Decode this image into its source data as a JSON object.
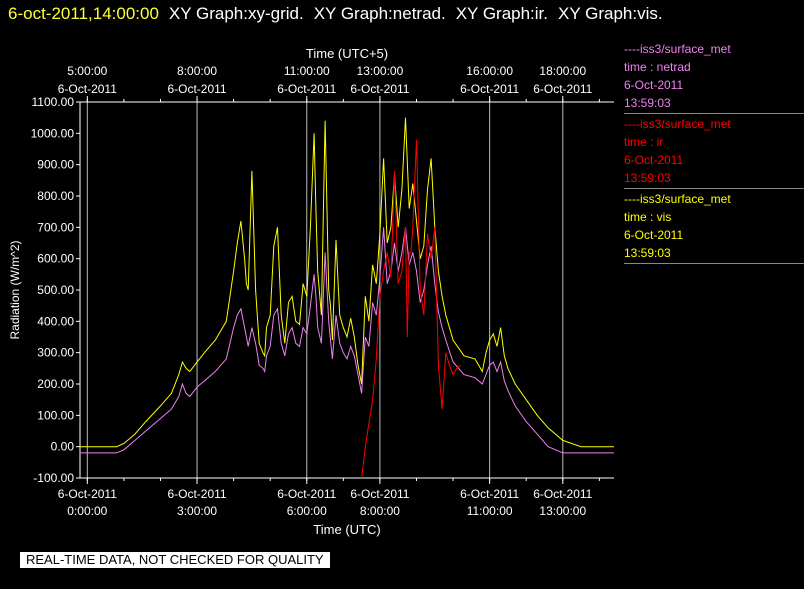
{
  "header": {
    "datetime": "6-oct-2011,14:00:00",
    "graphs": [
      "XY Graph:xy-grid.",
      "XY Graph:netrad.",
      "XY Graph:ir.",
      "XY Graph:vis."
    ]
  },
  "legend": [
    {
      "source": "----iss3/surface_met",
      "var": "time : netrad",
      "date": "6-Oct-2011",
      "time": "13:59:03",
      "color": "#ee82ee"
    },
    {
      "source": "----iss3/surface_met",
      "var": "time : ir",
      "date": "6-Oct-2011",
      "time": "13:59:03",
      "color": "#ff0000"
    },
    {
      "source": "----iss3/surface_met",
      "var": "time : vis",
      "date": "6-Oct-2011",
      "time": "13:59:03",
      "color": "#ffff00"
    }
  ],
  "disclaimer": "REAL-TIME DATA, NOT CHECKED FOR QUALITY",
  "chart_data": {
    "type": "line",
    "xlabel": "Time (UTC)",
    "x2label": "Time (UTC+5)",
    "ylabel": "Radiation (W/m^2)",
    "xlim": [
      -0.2,
      14.4
    ],
    "ylim": [
      -100,
      1100
    ],
    "yticks": [
      -100,
      0,
      100,
      200,
      300,
      400,
      500,
      600,
      700,
      800,
      900,
      1000,
      1100
    ],
    "ytick_labels": [
      "-100.00",
      "0.00",
      "100.00",
      "200.00",
      "300.00",
      "400.00",
      "500.00",
      "600.00",
      "700.00",
      "800.00",
      "900.00",
      "1000.00",
      "1100.00"
    ],
    "xticks_bottom": [
      {
        "x": 0,
        "date": "6-Oct-2011",
        "time": "0:00:00"
      },
      {
        "x": 3,
        "date": "6-Oct-2011",
        "time": "3:00:00"
      },
      {
        "x": 6,
        "date": "6-Oct-2011",
        "time": "6:00:00"
      },
      {
        "x": 8,
        "date": "6-Oct-2011",
        "time": "8:00:00"
      },
      {
        "x": 11,
        "date": "6-Oct-2011",
        "time": "11:00:00"
      },
      {
        "x": 13,
        "date": "6-Oct-2011",
        "time": "13:00:00"
      }
    ],
    "xticks_top": [
      {
        "x": 0,
        "date": "6-Oct-2011",
        "time": "5:00:00"
      },
      {
        "x": 3,
        "date": "6-Oct-2011",
        "time": "8:00:00"
      },
      {
        "x": 6,
        "date": "6-Oct-2011",
        "time": "11:00:00"
      },
      {
        "x": 8,
        "date": "6-Oct-2011",
        "time": "13:00:00"
      },
      {
        "x": 11,
        "date": "6-Oct-2011",
        "time": "16:00:00"
      },
      {
        "x": 13,
        "date": "6-Oct-2011",
        "time": "18:00:00"
      }
    ],
    "grid": "vertical",
    "series": [
      {
        "name": "vis",
        "color": "#ffff00",
        "x": [
          -0.2,
          0.8,
          1.0,
          1.3,
          1.6,
          2.0,
          2.3,
          2.5,
          2.6,
          2.7,
          2.8,
          2.9,
          3.0,
          3.2,
          3.5,
          3.8,
          4.0,
          4.1,
          4.2,
          4.3,
          4.35,
          4.4,
          4.5,
          4.6,
          4.7,
          4.8,
          4.85,
          4.9,
          5.0,
          5.1,
          5.2,
          5.3,
          5.4,
          5.5,
          5.6,
          5.7,
          5.8,
          5.9,
          6.0,
          6.1,
          6.2,
          6.25,
          6.3,
          6.4,
          6.5,
          6.6,
          6.65,
          6.7,
          6.8,
          6.9,
          7.0,
          7.1,
          7.2,
          7.3,
          7.4,
          7.5,
          7.6,
          7.7,
          7.8,
          7.9,
          8.0,
          8.1,
          8.2,
          8.3,
          8.4,
          8.5,
          8.6,
          8.7,
          8.8,
          8.9,
          9.0,
          9.1,
          9.2,
          9.3,
          9.4,
          9.5,
          9.6,
          9.7,
          9.8,
          10.0,
          10.3,
          10.6,
          10.8,
          10.9,
          11.0,
          11.1,
          11.2,
          11.3,
          11.4,
          11.5,
          11.7,
          12.0,
          12.3,
          12.6,
          13.0,
          13.5,
          14.4
        ],
        "y": [
          0,
          0,
          10,
          40,
          80,
          130,
          170,
          230,
          270,
          250,
          240,
          255,
          270,
          300,
          340,
          400,
          560,
          650,
          720,
          600,
          520,
          500,
          880,
          500,
          330,
          300,
          290,
          380,
          420,
          640,
          700,
          420,
          330,
          460,
          480,
          400,
          390,
          520,
          480,
          700,
          1000,
          760,
          560,
          420,
          1040,
          500,
          450,
          340,
          660,
          420,
          380,
          350,
          410,
          350,
          260,
          200,
          480,
          400,
          580,
          520,
          680,
          920,
          650,
          700,
          870,
          700,
          820,
          1050,
          760,
          840,
          720,
          600,
          640,
          820,
          920,
          700,
          560,
          480,
          420,
          340,
          290,
          280,
          240,
          300,
          340,
          360,
          320,
          380,
          290,
          250,
          200,
          150,
          100,
          60,
          20,
          0,
          0
        ]
      },
      {
        "name": "netrad",
        "color": "#ee82ee",
        "x": [
          -0.2,
          0.8,
          1.0,
          1.3,
          1.6,
          2.0,
          2.3,
          2.5,
          2.6,
          2.7,
          2.8,
          2.9,
          3.0,
          3.2,
          3.5,
          3.8,
          4.0,
          4.1,
          4.2,
          4.3,
          4.35,
          4.4,
          4.5,
          4.6,
          4.7,
          4.8,
          4.85,
          4.9,
          5.0,
          5.1,
          5.2,
          5.3,
          5.4,
          5.5,
          5.6,
          5.7,
          5.8,
          5.9,
          6.0,
          6.1,
          6.2,
          6.25,
          6.3,
          6.4,
          6.5,
          6.6,
          6.65,
          6.7,
          6.8,
          6.9,
          7.0,
          7.1,
          7.2,
          7.3,
          7.4,
          7.5,
          7.6,
          7.7,
          7.8,
          7.9,
          8.0,
          8.1,
          8.2,
          8.3,
          8.4,
          8.5,
          8.6,
          8.7,
          8.8,
          8.9,
          9.0,
          9.1,
          9.2,
          9.3,
          9.4,
          9.5,
          9.6,
          9.7,
          9.8,
          10.0,
          10.3,
          10.6,
          10.8,
          10.9,
          11.0,
          11.1,
          11.2,
          11.3,
          11.4,
          11.5,
          11.7,
          12.0,
          12.3,
          12.6,
          13.0,
          13.5,
          14.4
        ],
        "y": [
          -20,
          -20,
          -10,
          20,
          50,
          90,
          120,
          160,
          200,
          170,
          160,
          175,
          190,
          210,
          240,
          280,
          380,
          420,
          440,
          380,
          350,
          320,
          380,
          330,
          260,
          250,
          240,
          290,
          320,
          420,
          440,
          330,
          290,
          360,
          380,
          330,
          320,
          380,
          360,
          450,
          550,
          480,
          380,
          330,
          620,
          400,
          340,
          280,
          420,
          330,
          300,
          280,
          320,
          290,
          230,
          170,
          350,
          320,
          460,
          420,
          540,
          700,
          520,
          560,
          650,
          560,
          620,
          700,
          580,
          620,
          560,
          460,
          500,
          580,
          640,
          520,
          430,
          380,
          340,
          270,
          230,
          220,
          200,
          230,
          260,
          270,
          240,
          270,
          210,
          180,
          130,
          80,
          40,
          0,
          -20,
          -20,
          -20
        ]
      },
      {
        "name": "ir",
        "color": "#ff0000",
        "x": [
          7.5,
          7.6,
          7.8,
          7.9,
          8.0,
          8.1,
          8.2,
          8.3,
          8.4,
          8.5,
          8.6,
          8.7,
          8.75,
          8.8,
          8.85,
          8.9,
          9.0,
          9.1,
          9.2,
          9.3,
          9.4,
          9.5,
          9.6,
          9.7,
          9.8,
          9.9,
          10.0,
          10.1,
          10.2
        ],
        "y": [
          -100,
          0,
          150,
          280,
          480,
          560,
          620,
          540,
          880,
          520,
          560,
          700,
          350,
          620,
          620,
          700,
          980,
          500,
          420,
          680,
          600,
          700,
          260,
          120,
          300,
          260,
          230,
          250,
          260
        ]
      }
    ]
  }
}
